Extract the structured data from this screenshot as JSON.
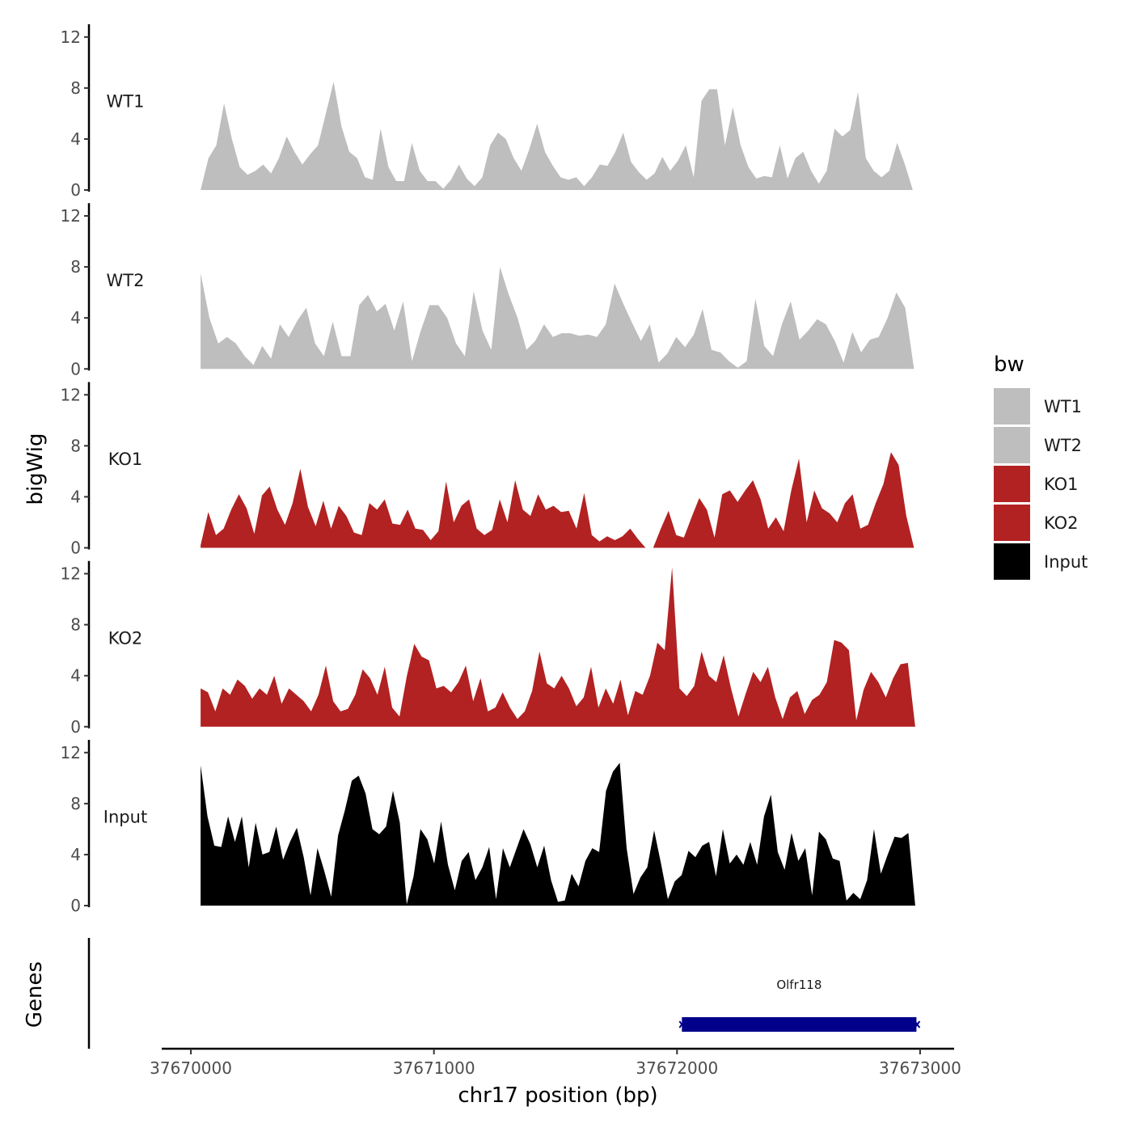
{
  "chart_data": {
    "type": "area",
    "ylabel": "bigWig",
    "xlabel": "chr17 position (bp)",
    "xlim": [
      37669880,
      37673140
    ],
    "x_ticks": [
      37670000,
      37671000,
      37672000,
      37673000
    ],
    "x_tick_labels": [
      "37670000",
      "37671000",
      "37672000",
      "37673000"
    ],
    "ylim": [
      0,
      13
    ],
    "y_ticks": [
      0,
      4,
      8,
      12
    ],
    "y_tick_labels": [
      "0",
      "4",
      "8",
      "12"
    ],
    "legend": {
      "title": "bw",
      "position": "right",
      "entries": [
        {
          "label": "WT1",
          "color": "#bebebe"
        },
        {
          "label": "WT2",
          "color": "#bebebe"
        },
        {
          "label": "KO1",
          "color": "#b22222"
        },
        {
          "label": "KO2",
          "color": "#b22222"
        },
        {
          "label": "Input",
          "color": "#000000"
        }
      ]
    },
    "series": [
      {
        "name": "WT1",
        "color": "#bebebe",
        "x_start": 37670040,
        "x_end": 37672970,
        "values": [
          0,
          2.5,
          3.5,
          6.8,
          4,
          1.8,
          1.2,
          1.5,
          2,
          1.3,
          2.5,
          4.2,
          3,
          2,
          2.8,
          3.5,
          6,
          8.5,
          5,
          3,
          2.5,
          1,
          0.8,
          4.8,
          1.8,
          0.7,
          0.7,
          3.7,
          1.5,
          0.7,
          0.7,
          0.1,
          0.8,
          2,
          0.9,
          0.3,
          1,
          3.5,
          4.5,
          4,
          2.5,
          1.5,
          3.2,
          5.2,
          3,
          1.9,
          1,
          0.8,
          1,
          0.3,
          1,
          2,
          1.9,
          3,
          4.5,
          2.2,
          1.4,
          0.8,
          1.3,
          2.6,
          1.5,
          2.3,
          3.5,
          1,
          7,
          7.9,
          7.9,
          3.5,
          6.5,
          3.5,
          1.8,
          0.9,
          1.1,
          1,
          3.5,
          0.9,
          2.5,
          3,
          1.5,
          0.5,
          1.5,
          4.8,
          4.2,
          4.7,
          7.7,
          2.5,
          1.5,
          1,
          1.5,
          3.7,
          2,
          0
        ]
      },
      {
        "name": "WT2",
        "color": "#bebebe",
        "x_start": 37670040,
        "x_end": 37672975,
        "values": [
          7.5,
          4,
          2,
          2.5,
          2,
          1,
          0.3,
          1.8,
          0.8,
          3.5,
          2.5,
          3.8,
          4.8,
          2,
          1,
          3.7,
          1,
          1,
          5,
          5.8,
          4.5,
          5.1,
          3,
          5.3,
          0.6,
          3,
          5,
          5,
          4,
          2,
          1,
          6.1,
          3,
          1.5,
          8,
          5.8,
          4,
          1.5,
          2.2,
          3.5,
          2.5,
          2.8,
          2.8,
          2.6,
          2.7,
          2.5,
          3.5,
          6.7,
          5.1,
          3.6,
          2.2,
          3.5,
          0.5,
          1.2,
          2.5,
          1.7,
          2.7,
          4.7,
          1.5,
          1.3,
          0.6,
          0.1,
          0.6,
          5.5,
          1.8,
          1,
          3.5,
          5.3,
          2.3,
          3,
          3.9,
          3.5,
          2.2,
          0.5,
          2.9,
          1.3,
          2.3,
          2.5,
          4,
          6,
          4.8,
          0
        ]
      },
      {
        "name": "KO1",
        "color": "#b22222",
        "x_start": 37670040,
        "x_end": 37672975,
        "values": [
          0.2,
          2.8,
          1,
          1.5,
          3,
          4.2,
          3.1,
          1.1,
          4.1,
          4.8,
          3,
          1.8,
          3.5,
          6.2,
          3.2,
          1.7,
          3.7,
          1.5,
          3.3,
          2.5,
          1.2,
          1,
          3.5,
          3,
          3.8,
          1.9,
          1.8,
          3,
          1.5,
          1.4,
          0.6,
          1.3,
          5.2,
          2,
          3.3,
          3.8,
          1.5,
          1,
          1.4,
          3.8,
          2,
          5.3,
          3,
          2.5,
          4.2,
          3,
          3.3,
          2.8,
          2.9,
          1.5,
          4.3,
          1,
          0.5,
          0.9,
          0.6,
          0.9,
          1.5,
          0.7,
          0,
          0,
          1.5,
          2.9,
          1,
          0.8,
          2.4,
          3.9,
          3,
          0.8,
          4.2,
          4.5,
          3.6,
          4.5,
          5.3,
          3.8,
          1.5,
          2.4,
          1.3,
          4.5,
          7,
          2,
          4.5,
          3.1,
          2.7,
          2,
          3.5,
          4.2,
          1.5,
          1.8,
          3.5,
          5,
          7.5,
          6.5,
          2.5,
          0
        ]
      },
      {
        "name": "KO2",
        "color": "#b22222",
        "x_start": 37670040,
        "x_end": 37672980,
        "values": [
          3,
          2.7,
          1.2,
          3,
          2.5,
          3.7,
          3.2,
          2.2,
          3,
          2.5,
          4,
          1.8,
          3,
          2.5,
          2,
          1.2,
          2.5,
          4.8,
          2,
          1.2,
          1.4,
          2.5,
          4.5,
          3.8,
          2.5,
          4.7,
          1.5,
          0.8,
          4,
          6.5,
          5.5,
          5.2,
          3,
          3.2,
          2.7,
          3.5,
          4.8,
          2,
          3.8,
          1.2,
          1.5,
          2.7,
          1.5,
          0.6,
          1.2,
          2.8,
          5.9,
          3.4,
          3,
          4,
          3,
          1.6,
          2.3,
          4.7,
          1.5,
          3,
          1.8,
          3.7,
          0.9,
          2.8,
          2.5,
          4,
          6.6,
          6,
          12.5,
          3,
          2.4,
          3.2,
          5.9,
          4,
          3.5,
          5.6,
          3,
          0.8,
          2.6,
          4.3,
          3.5,
          4.7,
          2.3,
          0.6,
          2.3,
          2.8,
          1,
          2.1,
          2.5,
          3.5,
          6.8,
          6.6,
          6,
          0.5,
          2.9,
          4.3,
          3.5,
          2.3,
          3.8,
          4.9,
          5,
          0
        ]
      },
      {
        "name": "Input",
        "color": "#000000",
        "x_start": 37670040,
        "x_end": 37672980,
        "values": [
          11,
          7,
          4.7,
          4.6,
          7,
          5,
          7,
          3,
          6.5,
          4,
          4.2,
          6.2,
          3.6,
          5,
          6.1,
          3.8,
          0.8,
          4.5,
          2.7,
          0.7,
          5.5,
          7.5,
          9.8,
          10.2,
          8.8,
          6,
          5.6,
          6.2,
          9,
          6.5,
          0.1,
          2.3,
          6,
          5.2,
          3.3,
          6.6,
          3.2,
          1.2,
          3.5,
          4.2,
          2,
          3,
          4.6,
          0.5,
          4.5,
          3,
          4.5,
          6,
          4.8,
          3,
          4.7,
          2,
          0.3,
          0.4,
          2.5,
          1.5,
          3.5,
          4.5,
          4.2,
          9,
          10.5,
          11.2,
          4.5,
          0.9,
          2.2,
          3,
          5.9,
          3.3,
          0.5,
          1.9,
          2.4,
          4.3,
          3.8,
          4.7,
          5,
          2.3,
          6,
          3.3,
          4,
          3.2,
          5,
          3.2,
          7,
          8.7,
          4.2,
          2.8,
          5.7,
          3.5,
          4.5,
          0.8,
          5.8,
          5.2,
          3.7,
          3.5,
          0.4,
          1,
          0.5,
          2,
          6,
          2.5,
          4,
          5.4,
          5.3,
          5.7,
          0
        ]
      }
    ],
    "genes_track": {
      "ylabel": "Genes",
      "genes": [
        {
          "name": "Olfr118",
          "start": 37672020,
          "end": 37672985,
          "strand": "-",
          "color": "#00008b"
        }
      ]
    }
  }
}
